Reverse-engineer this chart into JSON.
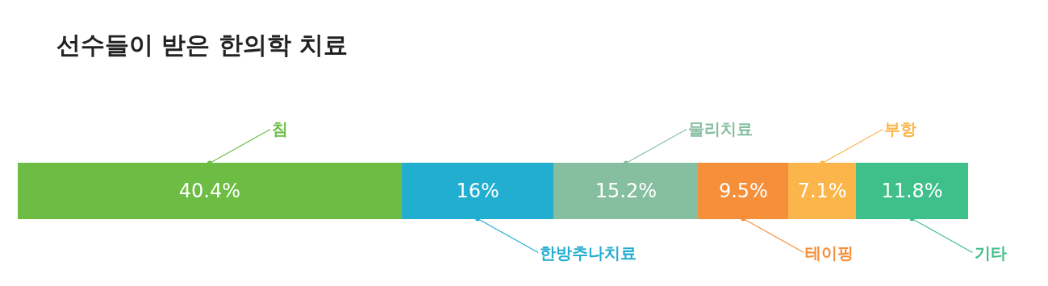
{
  "chart_data": {
    "type": "bar",
    "orientation": "horizontal",
    "stacked": true,
    "title": "선수들이 받은 한의학 치료",
    "categories": [
      null
    ],
    "legend": false,
    "series": [
      {
        "name": "침",
        "color": "#6dbd45",
        "values": [
          40.4
        ],
        "value_labels": [
          "40.4%"
        ]
      },
      {
        "name": "한방추나치료",
        "color": "#22aed1",
        "values": [
          16
        ],
        "value_labels": [
          "16%"
        ]
      },
      {
        "name": "물리치료",
        "color": "#86bfa0",
        "values": [
          15.2
        ],
        "value_labels": [
          "15.2%"
        ]
      },
      {
        "name": "테이핑",
        "color": "#f58f3a",
        "values": [
          9.5
        ],
        "value_labels": [
          "9.5%"
        ]
      },
      {
        "name": "부항",
        "color": "#fbb54a",
        "values": [
          7.1
        ],
        "value_labels": [
          "7.1%"
        ]
      },
      {
        "name": "기타",
        "color": "#3fbf8a",
        "values": [
          11.8
        ],
        "value_labels": [
          "11.8%"
        ]
      }
    ]
  }
}
